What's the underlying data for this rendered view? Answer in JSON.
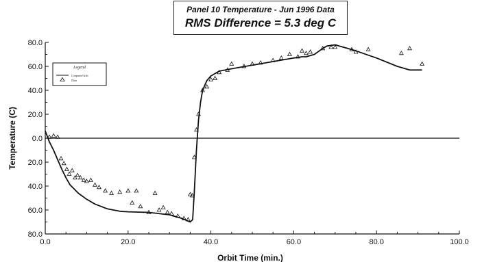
{
  "chart_data": {
    "type": "line",
    "title": "Panel 10 Temperature - Jun 1996 Data",
    "subtitle": "RMS Difference =  5.3 deg C",
    "xlabel": "Orbit Time (min.)",
    "ylabel": "Temperature (C)",
    "xlim": [
      0,
      100
    ],
    "ylim": [
      -80,
      80
    ],
    "x_ticks": [
      "0.0",
      "20.0",
      "40.0",
      "60.0",
      "80.0",
      "100.0"
    ],
    "y_ticks": [
      "80.0",
      "60.0",
      "40.0",
      "20.0",
      "0.0",
      "20.0",
      "40.0",
      "60.0",
      "80.0"
    ],
    "grid": false,
    "legend": {
      "title": "Legend",
      "position": "top-left",
      "entries": [
        "Computed Soln",
        "Data"
      ]
    },
    "series": [
      {
        "name": "Computed Soln",
        "style": "line",
        "x": [
          0,
          1,
          2,
          3,
          4,
          5,
          6,
          8,
          10,
          12,
          15,
          18,
          20,
          25,
          30,
          33,
          35,
          35.6,
          36,
          36.5,
          37,
          37.5,
          38,
          39,
          40,
          42,
          45,
          50,
          55,
          60,
          62,
          63,
          65,
          67,
          68,
          70,
          72,
          75,
          80,
          85,
          88,
          90,
          91
        ],
        "y": [
          6,
          -3,
          -10,
          -18,
          -26,
          -33,
          -39,
          -46,
          -51,
          -55,
          -59,
          -61,
          -61.5,
          -62,
          -64,
          -67,
          -70,
          -68,
          -45,
          -10,
          15,
          30,
          40,
          48,
          52,
          56,
          58,
          61,
          64,
          67,
          68,
          68,
          70,
          75,
          77,
          78,
          76,
          73,
          67,
          60,
          57,
          57,
          57
        ]
      },
      {
        "name": "Data",
        "style": "markers",
        "x": [
          1,
          2,
          3,
          3.8,
          4.5,
          5.2,
          5.8,
          6.5,
          7.2,
          7.8,
          8.5,
          9.3,
          10,
          11,
          12,
          13,
          14.5,
          16,
          18,
          20,
          21,
          22,
          23,
          25,
          26.5,
          27.5,
          28.5,
          29.5,
          30.5,
          32,
          33.5,
          34.5,
          35,
          35.5,
          36,
          36.5,
          37,
          38,
          39,
          40,
          41,
          42,
          44,
          45,
          48,
          50,
          52,
          55,
          57,
          59,
          61,
          62,
          63,
          64,
          67,
          69,
          70,
          74,
          75,
          78,
          86,
          88,
          91
        ],
        "y": [
          1,
          2,
          1,
          -17,
          -21,
          -26,
          -30,
          -27,
          -33,
          -31,
          -33,
          -35,
          -36,
          -35,
          -39,
          -41,
          -44,
          -46,
          -45,
          -44,
          -54,
          -44,
          -57,
          -62,
          -46,
          -60,
          -58,
          -62,
          -63,
          -65,
          -67,
          -68,
          -47,
          -48,
          -16,
          7,
          20,
          40,
          43,
          49,
          50,
          55,
          57,
          62,
          60,
          62,
          63,
          65,
          67,
          70,
          68,
          73,
          71,
          72,
          75,
          76,
          76,
          74,
          72,
          74,
          71,
          75,
          62
        ]
      }
    ]
  }
}
